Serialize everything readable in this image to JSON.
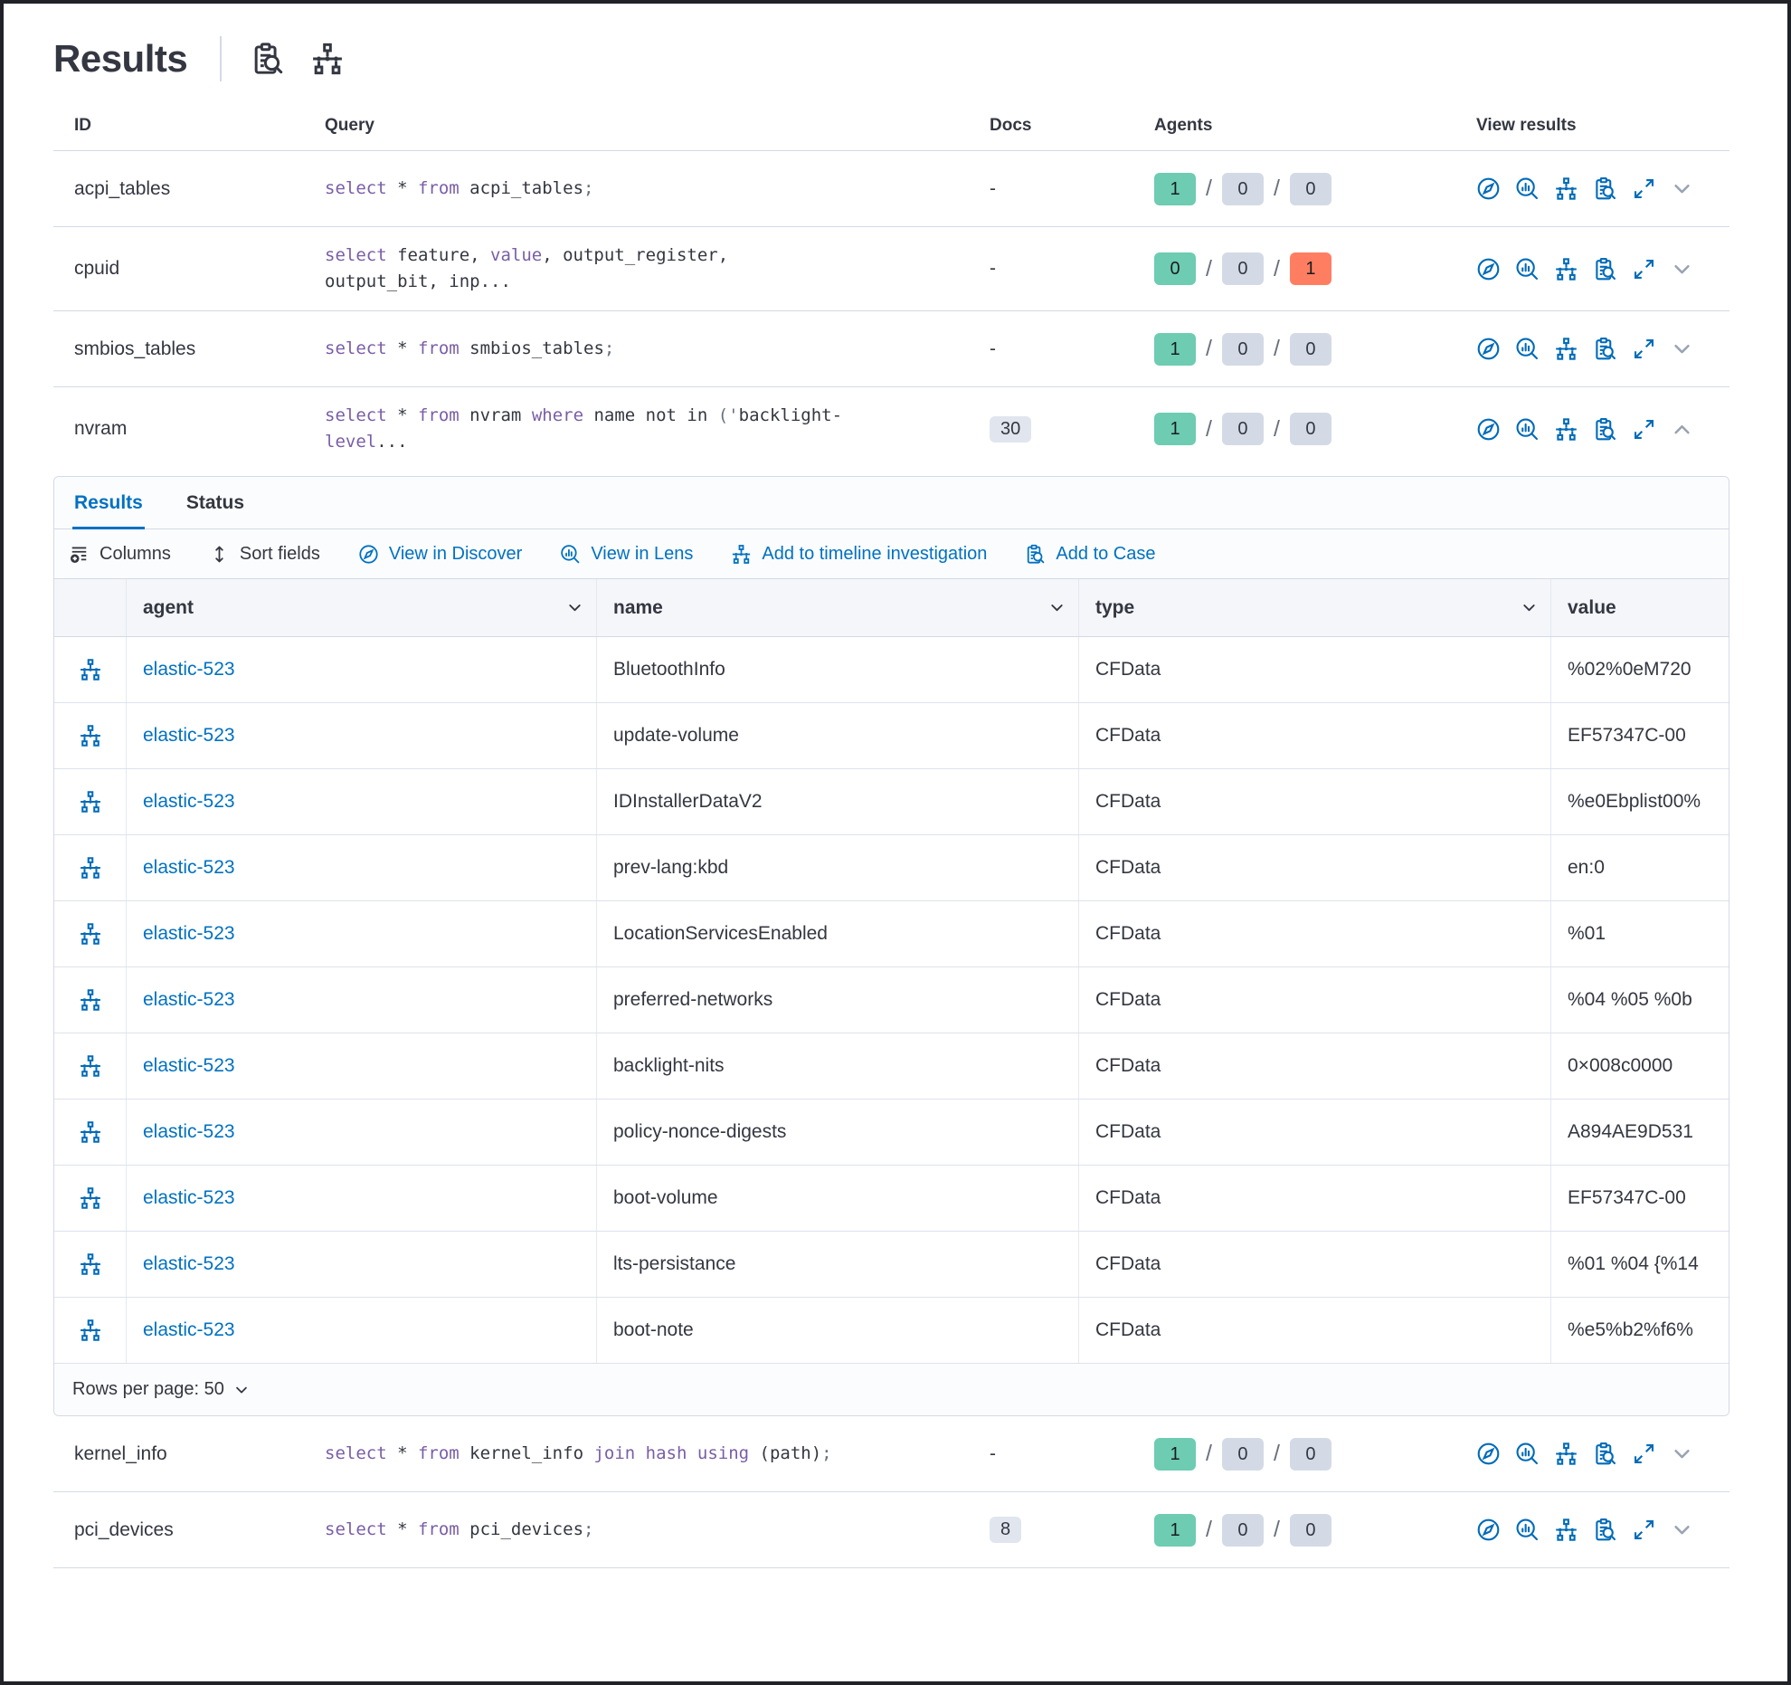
{
  "header": {
    "title": "Results",
    "icons": [
      {
        "name": "inspect-icon",
        "symbol": "i-inspect"
      },
      {
        "name": "timeline-icon",
        "symbol": "i-timeline"
      }
    ]
  },
  "colors": {
    "primary_blue": "#0071c2",
    "icon_blue": "#006bb8",
    "keyword_purple": "#7a5ea6",
    "badge_green": "#6dccb1",
    "badge_gray": "#d3dae6",
    "badge_red": "#ff7e62",
    "docs_badge_bg": "#e0e5ee",
    "text_dark": "#343741"
  },
  "results_table": {
    "columns": {
      "id": "ID",
      "query": "Query",
      "docs": "Docs",
      "agents": "Agents",
      "view": "View results"
    },
    "view_icons": [
      "discover",
      "lens",
      "timeline",
      "case",
      "expand"
    ],
    "rows": [
      {
        "section": "top",
        "id": "acpi_tables",
        "query": [
          [
            "kw",
            "select"
          ],
          [
            "txt",
            " * "
          ],
          [
            "kw",
            "from"
          ],
          [
            "txt",
            " acpi_tables"
          ],
          [
            "punc",
            ";"
          ]
        ],
        "docs": "-",
        "docs_badge": false,
        "agents": [
          [
            "1",
            "green"
          ],
          [
            "0",
            "gray"
          ],
          [
            "0",
            "gray"
          ]
        ],
        "expanded": false
      },
      {
        "section": "top",
        "id": "cpuid",
        "query": [
          [
            "kw",
            "select"
          ],
          [
            "txt",
            " feature, "
          ],
          [
            "kw",
            "value"
          ],
          [
            "txt",
            ", output_register, output_bit, inp..."
          ]
        ],
        "docs": "-",
        "docs_badge": false,
        "agents": [
          [
            "0",
            "green"
          ],
          [
            "0",
            "gray"
          ],
          [
            "1",
            "red"
          ]
        ],
        "expanded": false
      },
      {
        "section": "top",
        "id": "smbios_tables",
        "query": [
          [
            "kw",
            "select"
          ],
          [
            "txt",
            " * "
          ],
          [
            "kw",
            "from"
          ],
          [
            "txt",
            " smbios_tables"
          ],
          [
            "punc",
            ";"
          ]
        ],
        "docs": "-",
        "docs_badge": false,
        "agents": [
          [
            "1",
            "green"
          ],
          [
            "0",
            "gray"
          ],
          [
            "0",
            "gray"
          ]
        ],
        "expanded": false
      },
      {
        "section": "top",
        "id": "nvram",
        "query": [
          [
            "kw",
            "select"
          ],
          [
            "txt",
            " * "
          ],
          [
            "kw",
            "from"
          ],
          [
            "txt",
            " nvram "
          ],
          [
            "kw",
            "where"
          ],
          [
            "txt",
            " name not in "
          ],
          [
            "punc",
            "('"
          ],
          [
            "txt",
            "backlight-"
          ],
          [
            "kw",
            "level"
          ],
          [
            "txt",
            "..."
          ]
        ],
        "docs": "30",
        "docs_badge": true,
        "agents": [
          [
            "1",
            "green"
          ],
          [
            "0",
            "gray"
          ],
          [
            "0",
            "gray"
          ]
        ],
        "expanded": true
      },
      {
        "section": "bottom",
        "id": "kernel_info",
        "query": [
          [
            "kw",
            "select"
          ],
          [
            "txt",
            " * "
          ],
          [
            "kw",
            "from"
          ],
          [
            "txt",
            " kernel_info "
          ],
          [
            "kw",
            "join"
          ],
          [
            "txt",
            " "
          ],
          [
            "kw",
            "hash"
          ],
          [
            "txt",
            " "
          ],
          [
            "kw",
            "using"
          ],
          [
            "txt",
            " (path)"
          ],
          [
            "punc",
            ";"
          ]
        ],
        "docs": "-",
        "docs_badge": false,
        "agents": [
          [
            "1",
            "green"
          ],
          [
            "0",
            "gray"
          ],
          [
            "0",
            "gray"
          ]
        ],
        "expanded": false
      },
      {
        "section": "bottom",
        "id": "pci_devices",
        "query": [
          [
            "kw",
            "select"
          ],
          [
            "txt",
            " * "
          ],
          [
            "kw",
            "from"
          ],
          [
            "txt",
            " pci_devices"
          ],
          [
            "punc",
            ";"
          ]
        ],
        "docs": "8",
        "docs_badge": true,
        "agents": [
          [
            "1",
            "green"
          ],
          [
            "0",
            "gray"
          ],
          [
            "0",
            "gray"
          ]
        ],
        "expanded": false
      }
    ]
  },
  "expanded_panel": {
    "tabs": [
      {
        "label": "Results",
        "active": true
      },
      {
        "label": "Status",
        "active": false
      }
    ],
    "toolbar": [
      {
        "label": "Columns",
        "icon": "i-columns",
        "color": "dark",
        "name": "columns-button"
      },
      {
        "label": "Sort fields",
        "icon": "i-sort",
        "color": "dark",
        "name": "sort-fields-button"
      },
      {
        "label": "View in Discover",
        "icon": "i-discover",
        "color": "blue",
        "name": "view-in-discover-button"
      },
      {
        "label": "View in Lens",
        "icon": "i-lens",
        "color": "blue",
        "name": "view-in-lens-button"
      },
      {
        "label": "Add to timeline investigation",
        "icon": "i-timeline",
        "color": "blue",
        "name": "add-to-timeline-button"
      },
      {
        "label": "Add to Case",
        "icon": "i-inspect",
        "color": "blue",
        "name": "add-to-case-button"
      }
    ],
    "grid": {
      "columns": [
        {
          "label": "agent",
          "sortable": true
        },
        {
          "label": "name",
          "sortable": true
        },
        {
          "label": "type",
          "sortable": true
        },
        {
          "label": "value",
          "sortable": false
        }
      ],
      "rows": [
        {
          "agent": "elastic-523",
          "name": "BluetoothInfo",
          "type": "CFData",
          "value": "%02%0eM720"
        },
        {
          "agent": "elastic-523",
          "name": "update-volume",
          "type": "CFData",
          "value": "EF57347C-00"
        },
        {
          "agent": "elastic-523",
          "name": "IDInstallerDataV2",
          "type": "CFData",
          "value": "%e0Ebplist00%"
        },
        {
          "agent": "elastic-523",
          "name": "prev-lang:kbd",
          "type": "CFData",
          "value": "en:0"
        },
        {
          "agent": "elastic-523",
          "name": "LocationServicesEnabled",
          "type": "CFData",
          "value": "%01"
        },
        {
          "agent": "elastic-523",
          "name": "preferred-networks",
          "type": "CFData",
          "value": "%04 %05 %0b"
        },
        {
          "agent": "elastic-523",
          "name": "backlight-nits",
          "type": "CFData",
          "value": "0×008c0000"
        },
        {
          "agent": "elastic-523",
          "name": "policy-nonce-digests",
          "type": "CFData",
          "value": "A894AE9D531"
        },
        {
          "agent": "elastic-523",
          "name": "boot-volume",
          "type": "CFData",
          "value": "EF57347C-00"
        },
        {
          "agent": "elastic-523",
          "name": "lts-persistance",
          "type": "CFData",
          "value": "%01 %04 {%14"
        },
        {
          "agent": "elastic-523",
          "name": "boot-note",
          "type": "CFData",
          "value": "%e5%b2%f6%"
        }
      ]
    },
    "footer": {
      "rows_per_page": "Rows per page: 50"
    }
  }
}
